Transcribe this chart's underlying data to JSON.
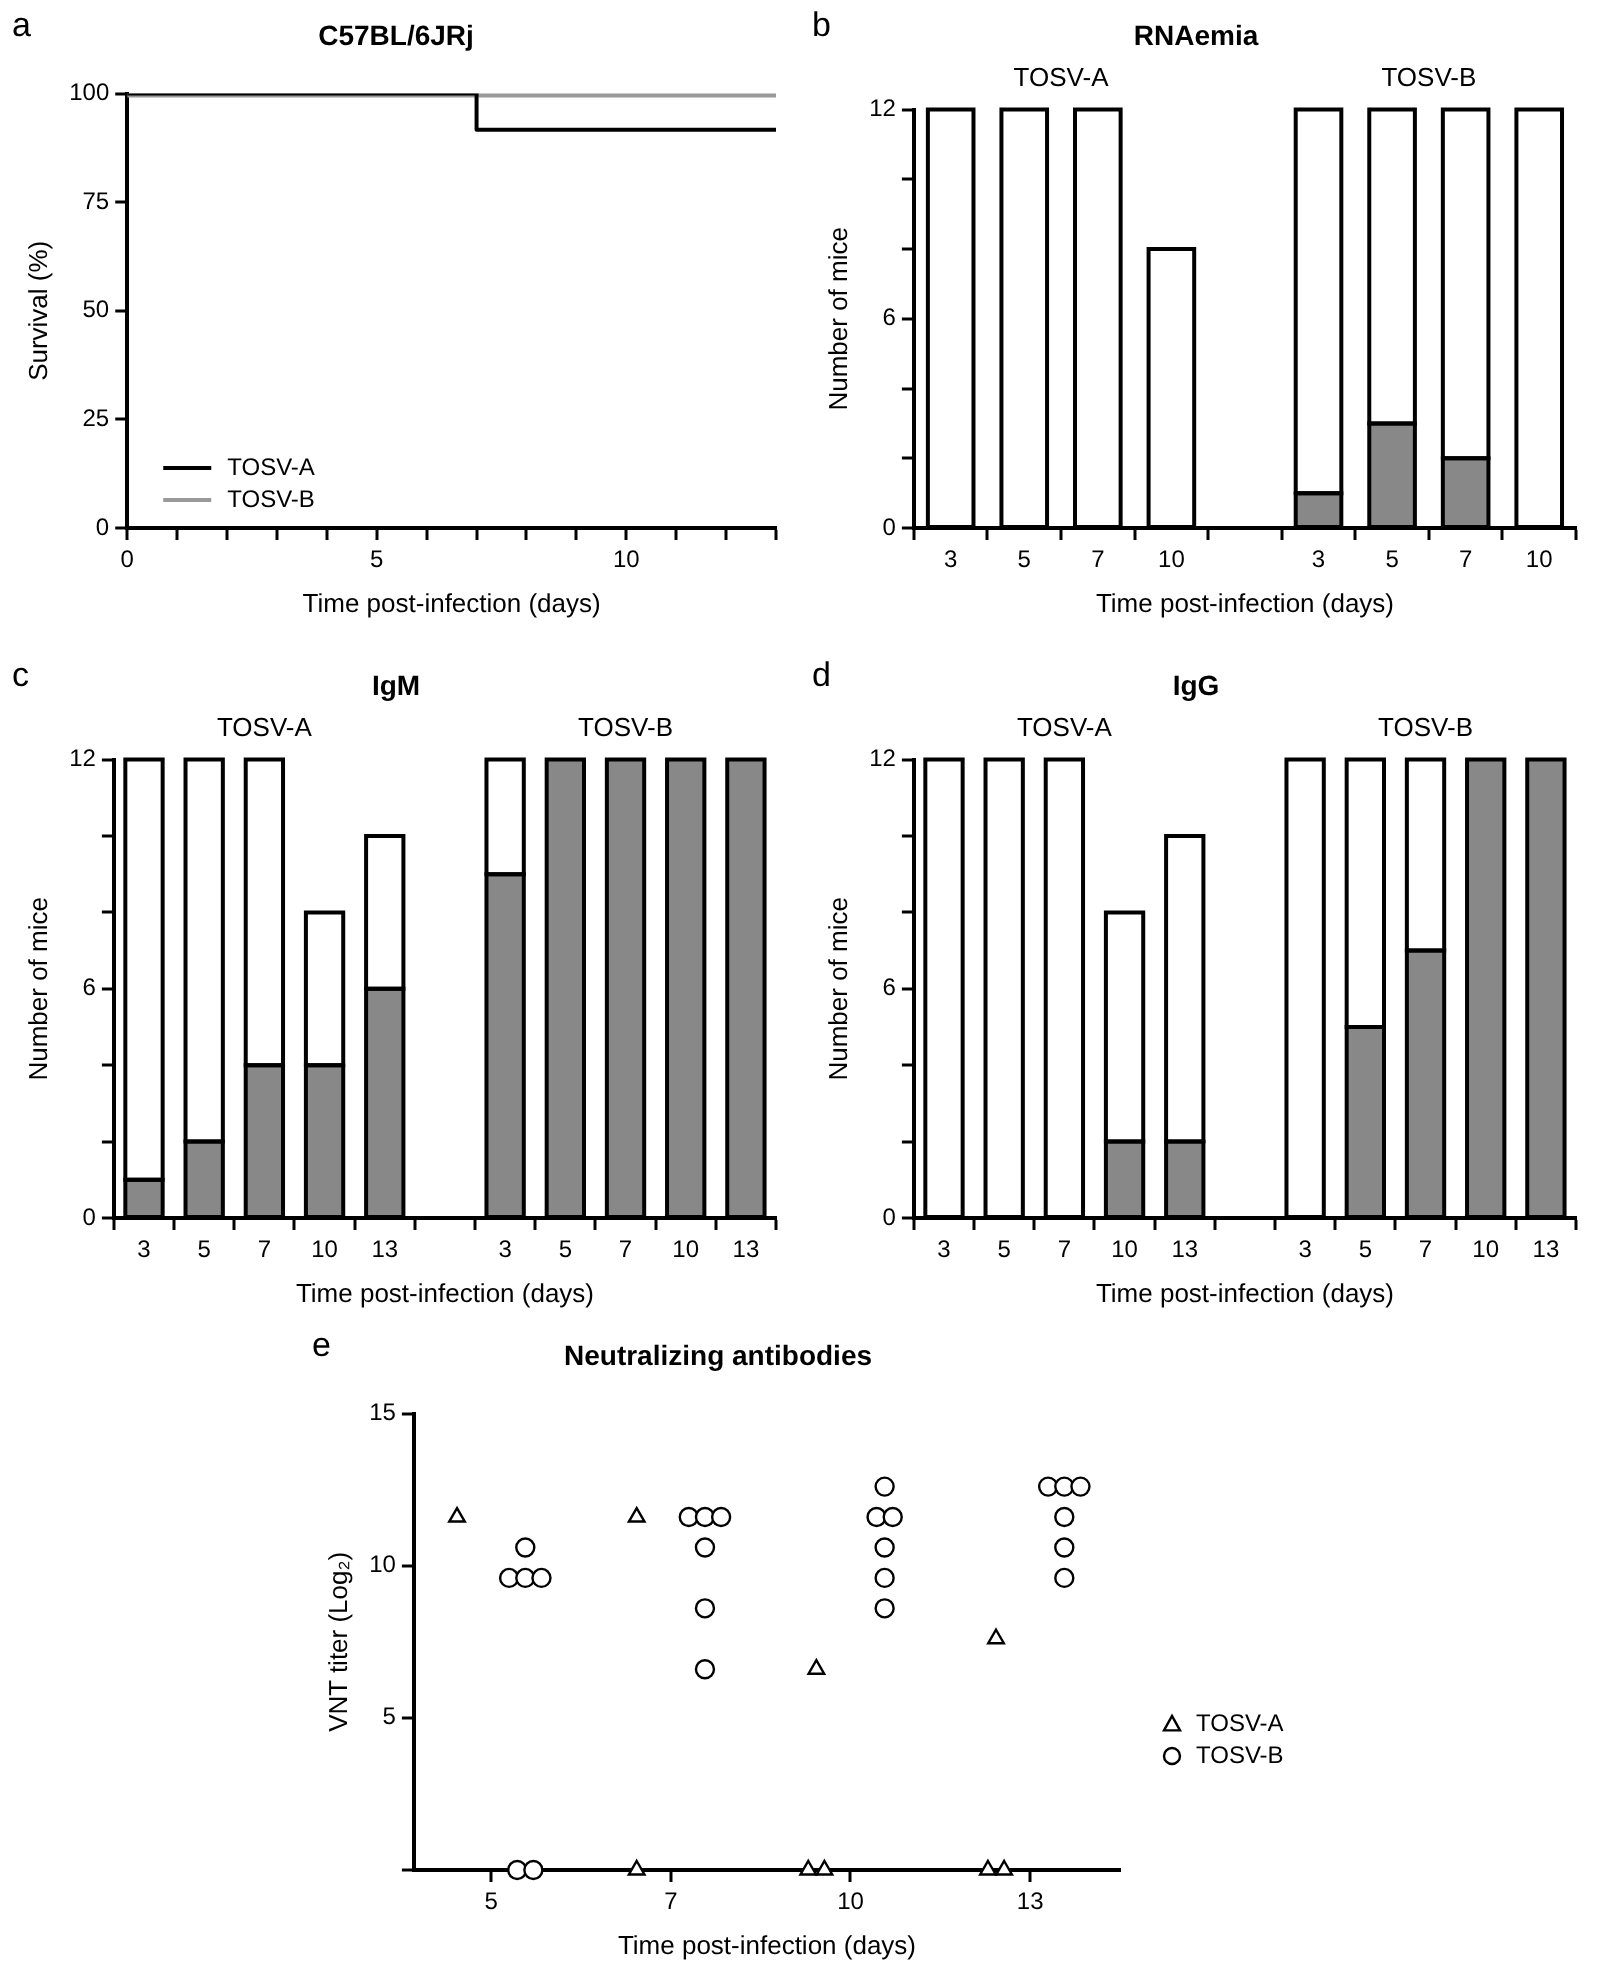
{
  "chart_data": [
    {
      "type": "step",
      "title": "C57BL/6JRj",
      "xlabel": "Time post-infection (days)",
      "ylabel": "Survival (%)",
      "annotations": [
        "a"
      ],
      "legend": "bottom left",
      "series": [
        {
          "name": "TOSV-A",
          "color": "#000000",
          "x": [
            0,
            7,
            13
          ],
          "values": [
            100,
            91.7,
            91.7
          ]
        },
        {
          "name": "TOSV-B",
          "color": "#999999",
          "x": [
            0,
            13
          ],
          "values": [
            100,
            100
          ]
        }
      ],
      "xlim": [
        0,
        13
      ],
      "xticks": [
        0,
        {
          "value": 1,
          "label": null
        },
        {
          "value": 2,
          "label": null
        },
        {
          "value": 3,
          "label": null
        },
        {
          "value": 4,
          "label": null
        },
        5,
        {
          "value": 6,
          "label": null
        },
        {
          "value": 7,
          "label": null
        },
        {
          "value": 8,
          "label": null
        },
        {
          "value": 9,
          "label": null
        },
        10,
        {
          "value": 11,
          "label": null
        },
        {
          "value": 12,
          "label": null
        },
        {
          "value": 13,
          "label": null
        }
      ],
      "ylim": [
        0,
        100
      ],
      "yticks": [
        0,
        25,
        50,
        75,
        100
      ]
    },
    {
      "type": "bar",
      "stacked": true,
      "title": "RNAemia",
      "xlabel": "Time post-infection (days)",
      "ylabel": "Number of mice",
      "annotations": [
        "b",
        "TOSV-A",
        "TOSV-B"
      ],
      "categories": [
        "3",
        "5",
        "7",
        "10",
        null,
        "3",
        "5",
        "7",
        "10"
      ],
      "series": [
        {
          "color": "#888888",
          "values": [
            0,
            0,
            0,
            0,
            null,
            1,
            3,
            2,
            0
          ]
        },
        {
          "color": "#ffffff",
          "values": [
            12,
            12,
            12,
            8,
            null,
            11,
            9,
            10,
            12
          ]
        }
      ],
      "ylim": [
        0,
        12
      ],
      "yticks": [
        0,
        {
          "value": 2,
          "label": null
        },
        {
          "value": 4,
          "label": null
        },
        6,
        {
          "value": 8,
          "label": null
        },
        {
          "value": 10,
          "label": null
        },
        12
      ]
    },
    {
      "type": "bar",
      "stacked": true,
      "title": "IgM",
      "xlabel": "Time post-infection (days)",
      "ylabel": "Number of mice",
      "annotations": [
        "c",
        "TOSV-A",
        "TOSV-B"
      ],
      "categories": [
        "3",
        "5",
        "7",
        "10",
        "13",
        null,
        "3",
        "5",
        "7",
        "10",
        "13"
      ],
      "series": [
        {
          "color": "#888888",
          "values": [
            1,
            2,
            4,
            4,
            6,
            null,
            9,
            12,
            12,
            12,
            12
          ]
        },
        {
          "color": "#ffffff",
          "values": [
            11,
            10,
            8,
            4,
            4,
            null,
            3,
            0,
            0,
            0,
            0
          ]
        }
      ],
      "ylim": [
        0,
        12
      ],
      "yticks": [
        0,
        {
          "value": 2,
          "label": null
        },
        {
          "value": 4,
          "label": null
        },
        6,
        {
          "value": 8,
          "label": null
        },
        {
          "value": 10,
          "label": null
        },
        12
      ]
    },
    {
      "type": "bar",
      "stacked": true,
      "title": "IgG",
      "xlabel": "Time post-infection (days)",
      "ylabel": "Number of mice",
      "annotations": [
        "d",
        "TOSV-A",
        "TOSV-B"
      ],
      "categories": [
        "3",
        "5",
        "7",
        "10",
        "13",
        null,
        "3",
        "5",
        "7",
        "10",
        "13"
      ],
      "series": [
        {
          "color": "#888888",
          "values": [
            0,
            0,
            0,
            2,
            2,
            null,
            0,
            5,
            7,
            12,
            12
          ]
        },
        {
          "color": "#ffffff",
          "values": [
            12,
            12,
            12,
            6,
            8,
            null,
            12,
            7,
            5,
            0,
            0
          ]
        }
      ],
      "ylim": [
        0,
        12
      ],
      "yticks": [
        0,
        {
          "value": 2,
          "label": null
        },
        {
          "value": 4,
          "label": null
        },
        6,
        {
          "value": 8,
          "label": null
        },
        {
          "value": 10,
          "label": null
        },
        12
      ]
    },
    {
      "type": "scatter",
      "title": "Neutralizing antibodies",
      "xlabel": "Time post-infection (days)",
      "ylabel": "VNT titer (Log₂)",
      "annotations": [
        "e"
      ],
      "legend": "right",
      "categories": [
        "5",
        "7",
        "10",
        "13"
      ],
      "series": [
        {
          "name": "TOSV-A",
          "color": "#000000",
          "marker": "triangle",
          "x": [
            "5",
            "7",
            "7",
            "10",
            "10",
            "10",
            "13",
            "13",
            "13"
          ],
          "values": [
            11.6,
            11.6,
            0,
            6.6,
            0,
            0,
            7.6,
            0,
            0
          ]
        },
        {
          "name": "TOSV-B",
          "color": "#000000",
          "marker": "circle",
          "x": [
            "5",
            "5",
            "5",
            "5",
            "5",
            "5",
            "7",
            "7",
            "7",
            "7",
            "7",
            "7",
            "10",
            "10",
            "10",
            "10",
            "10",
            "10",
            "13",
            "13",
            "13",
            "13",
            "13",
            "13"
          ],
          "values": [
            10.6,
            9.6,
            9.6,
            9.6,
            0,
            0,
            11.6,
            11.6,
            11.6,
            10.6,
            8.6,
            6.6,
            12.6,
            11.6,
            11.6,
            10.6,
            9.6,
            8.6,
            12.6,
            12.6,
            12.6,
            11.6,
            10.6,
            9.6
          ]
        }
      ],
      "ylim": [
        0,
        15
      ],
      "yticks": [
        {
          "value": 0,
          "label": null
        },
        5,
        10,
        15
      ]
    }
  ]
}
